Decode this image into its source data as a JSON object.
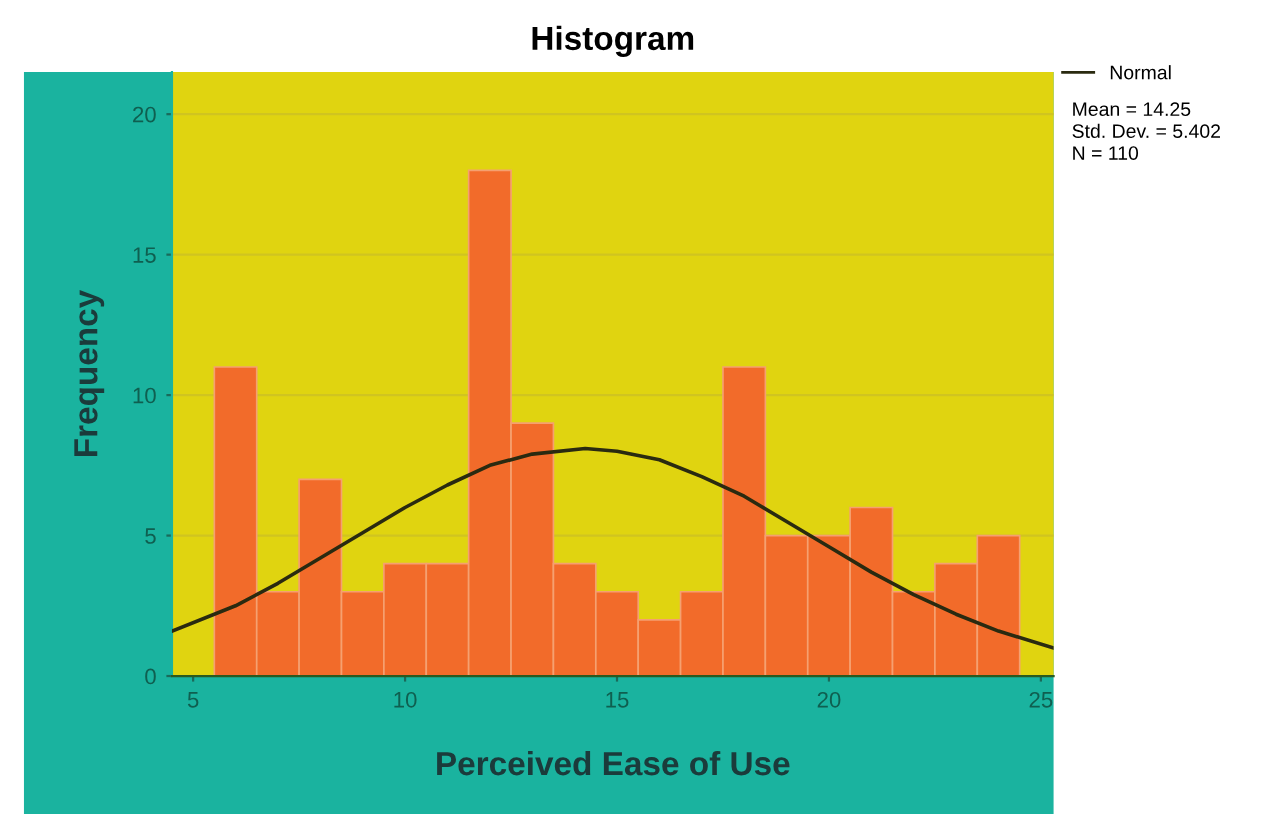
{
  "chart_data": {
    "type": "histogram",
    "title": "Histogram",
    "xlabel": "Perceived Ease of Use",
    "ylabel": "Frequency",
    "bins": [
      5.5,
      6.5,
      7.5,
      8.5,
      9.5,
      10.5,
      11.5,
      12.5,
      13.5,
      14.5,
      15.5,
      16.5,
      17.5,
      18.5,
      19.5,
      20.5,
      21.5,
      22.5,
      23.5,
      24.5
    ],
    "series": [
      {
        "color": "#f26b2a",
        "values": [
          11,
          3,
          7,
          3,
          4,
          4,
          18,
          9,
          4,
          3,
          2,
          3,
          11,
          5,
          5,
          6,
          3,
          4,
          5
        ]
      },
      {
        "type": "line",
        "name": "Normal",
        "color": "#2a2a10",
        "x": [
          4.5,
          6,
          7,
          8,
          9,
          10,
          11,
          12,
          13,
          14.25,
          15,
          16,
          17,
          18,
          19,
          20,
          21,
          22,
          23,
          24,
          25.3
        ],
        "values": [
          1.6,
          2.5,
          3.3,
          4.2,
          5.1,
          6.0,
          6.8,
          7.5,
          7.9,
          8.1,
          8.0,
          7.7,
          7.1,
          6.4,
          5.5,
          4.6,
          3.7,
          2.9,
          2.2,
          1.6,
          1.0
        ]
      }
    ],
    "xlim": [
      4.5,
      25.3
    ],
    "xticks": [
      5,
      10,
      15,
      20,
      25
    ],
    "ylim": [
      0,
      21.5
    ],
    "yticks": [
      0,
      5,
      10,
      15,
      20
    ],
    "grid": "y",
    "legend": "right",
    "annotations": [
      "Mean = 14.25",
      "Std. Dev. = 5.402",
      "N = 110"
    ]
  }
}
